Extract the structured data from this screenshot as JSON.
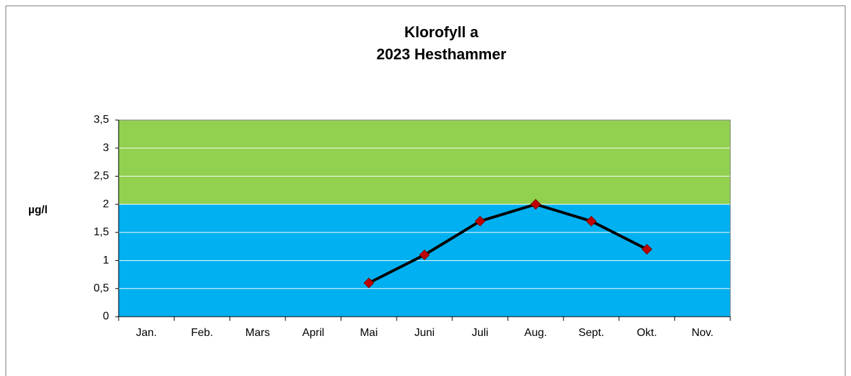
{
  "chart_data": {
    "type": "line",
    "title": [
      "Klorofyll a",
      "2023 Hesthammer"
    ],
    "ylabel": "µg/l",
    "categories": [
      "Jan.",
      "Feb.",
      "Mars",
      "April",
      "Mai",
      "Juni",
      "Juli",
      "Aug.",
      "Sept.",
      "Okt.",
      "Nov."
    ],
    "series": [
      {
        "color": "#000000",
        "marker_color": "#c00000",
        "values": [
          null,
          null,
          null,
          null,
          0.6,
          1.1,
          1.7,
          2.0,
          1.7,
          1.2,
          null
        ]
      }
    ],
    "bands": [
      {
        "from": 0,
        "to": 2,
        "color": "#00b0f0"
      },
      {
        "from": 2,
        "to": 3.5,
        "color": "#92d050"
      }
    ],
    "ylim": [
      0,
      3.5
    ],
    "yticks": [
      0,
      {
        "value": 0.5,
        "label": "0,5"
      },
      1,
      {
        "value": 1.5,
        "label": "1,5"
      },
      2,
      {
        "value": 2.5,
        "label": "2,5"
      },
      3,
      {
        "value": 3.5,
        "label": "3,5"
      }
    ],
    "grid": true
  }
}
